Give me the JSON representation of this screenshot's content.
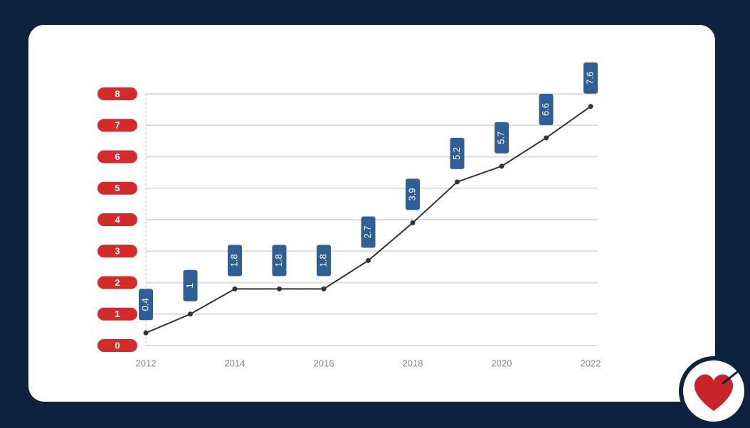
{
  "chart_data": {
    "type": "line",
    "x": [
      2012,
      2013,
      2014,
      2015,
      2016,
      2017,
      2018,
      2019,
      2020,
      2021,
      2022
    ],
    "series": [
      {
        "color": "#333333",
        "label_color": "#2f5f95",
        "values": [
          0.4,
          1.0,
          1.8,
          1.8,
          1.8,
          2.7,
          3.9,
          5.2,
          5.7,
          6.6,
          7.6
        ]
      }
    ],
    "xlim": [
      2012,
      2022
    ],
    "xticks": [
      2012,
      2014,
      2016,
      2018,
      2020,
      2022
    ],
    "ylim": [
      0,
      8
    ],
    "yticks": [
      0,
      1,
      2,
      3,
      4,
      5,
      6,
      7,
      8
    ],
    "ytick_color": "#d42a2a",
    "grid": true
  }
}
